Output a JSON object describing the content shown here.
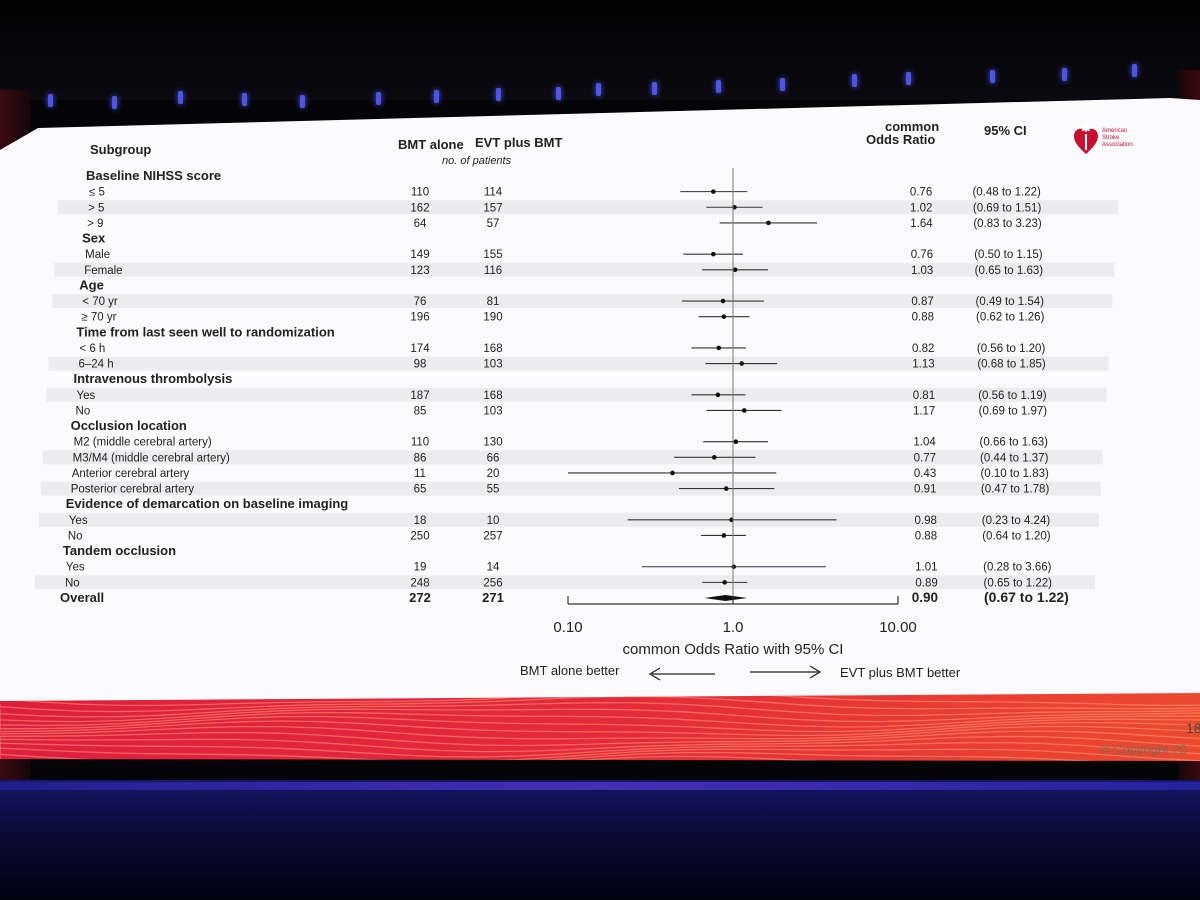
{
  "header": {
    "subgroup": "Subgroup",
    "col_a": "BMT alone",
    "col_b": "EVT plus BMT",
    "patients_note": "no. of patients",
    "or_line1": "common",
    "or_line2": "Odds Ratio",
    "ci": "95% CI"
  },
  "logo": {
    "line1": "American",
    "line2": "Stroke",
    "line3": "Association."
  },
  "chart_data": {
    "type": "forest",
    "xlabel": "common Odds Ratio with 95% CI",
    "xscale": "log",
    "xlim": [
      0.1,
      10
    ],
    "ticks": [
      {
        "value": 0.1,
        "label": "0.10"
      },
      {
        "value": 1,
        "label": "1.0"
      },
      {
        "value": 10,
        "label": "10.00"
      }
    ],
    "left_favors": "BMT alone better",
    "right_favors": "EVT plus BMT better",
    "rows": [
      {
        "kind": "group",
        "label": "Baseline NIHSS score"
      },
      {
        "kind": "sub",
        "label": "≤ 5",
        "a": "110",
        "b": "114",
        "or": 0.76,
        "lo": 0.48,
        "hi": 1.22,
        "or_text": "0.76",
        "ci_text": "(0.48 to 1.22)"
      },
      {
        "kind": "sub",
        "label": "> 5",
        "a": "162",
        "b": "157",
        "or": 1.02,
        "lo": 0.69,
        "hi": 1.51,
        "or_text": "1.02",
        "ci_text": "(0.69 to 1.51)"
      },
      {
        "kind": "sub",
        "label": "> 9",
        "a": "64",
        "b": "57",
        "or": 1.64,
        "lo": 0.83,
        "hi": 3.23,
        "or_text": "1.64",
        "ci_text": "(0.83 to 3.23)"
      },
      {
        "kind": "group",
        "label": "Sex"
      },
      {
        "kind": "sub",
        "label": "Male",
        "a": "149",
        "b": "155",
        "or": 0.76,
        "lo": 0.5,
        "hi": 1.15,
        "or_text": "0.76",
        "ci_text": "(0.50 to 1.15)"
      },
      {
        "kind": "sub",
        "label": "Female",
        "a": "123",
        "b": "116",
        "or": 1.03,
        "lo": 0.65,
        "hi": 1.63,
        "or_text": "1.03",
        "ci_text": "(0.65 to 1.63)"
      },
      {
        "kind": "group",
        "label": "Age"
      },
      {
        "kind": "sub",
        "label": "< 70 yr",
        "a": "76",
        "b": "81",
        "or": 0.87,
        "lo": 0.49,
        "hi": 1.54,
        "or_text": "0.87",
        "ci_text": "(0.49 to 1.54)"
      },
      {
        "kind": "sub",
        "label": "≥ 70 yr",
        "a": "196",
        "b": "190",
        "or": 0.88,
        "lo": 0.62,
        "hi": 1.26,
        "or_text": "0.88",
        "ci_text": "(0.62 to 1.26)"
      },
      {
        "kind": "group",
        "label": "Time from last seen well to randomization"
      },
      {
        "kind": "sub",
        "label": "< 6 h",
        "a": "174",
        "b": "168",
        "or": 0.82,
        "lo": 0.56,
        "hi": 1.2,
        "or_text": "0.82",
        "ci_text": "(0.56 to 1.20)"
      },
      {
        "kind": "sub",
        "label": "6–24 h",
        "a": "98",
        "b": "103",
        "or": 1.13,
        "lo": 0.68,
        "hi": 1.85,
        "or_text": "1.13",
        "ci_text": "(0.68 to 1.85)"
      },
      {
        "kind": "group",
        "label": "Intravenous thrombolysis"
      },
      {
        "kind": "sub",
        "label": "Yes",
        "a": "187",
        "b": "168",
        "or": 0.81,
        "lo": 0.56,
        "hi": 1.19,
        "or_text": "0.81",
        "ci_text": "(0.56 to 1.19)"
      },
      {
        "kind": "sub",
        "label": "No",
        "a": "85",
        "b": "103",
        "or": 1.17,
        "lo": 0.69,
        "hi": 1.97,
        "or_text": "1.17",
        "ci_text": "(0.69 to 1.97)"
      },
      {
        "kind": "group",
        "label": "Occlusion location"
      },
      {
        "kind": "sub",
        "label": "M2 (middle cerebral artery)",
        "a": "110",
        "b": "130",
        "or": 1.04,
        "lo": 0.66,
        "hi": 1.63,
        "or_text": "1.04",
        "ci_text": "(0.66 to 1.63)"
      },
      {
        "kind": "sub",
        "label": "M3/M4 (middle cerebral artery)",
        "a": "86",
        "b": "66",
        "or": 0.77,
        "lo": 0.44,
        "hi": 1.37,
        "or_text": "0.77",
        "ci_text": "(0.44 to 1.37)"
      },
      {
        "kind": "sub",
        "label": "Anterior cerebral artery",
        "a": "11",
        "b": "20",
        "or": 0.43,
        "lo": 0.1,
        "hi": 1.83,
        "or_text": "0.43",
        "ci_text": "(0.10 to 1.83)"
      },
      {
        "kind": "sub",
        "label": "Posterior cerebral artery",
        "a": "65",
        "b": "55",
        "or": 0.91,
        "lo": 0.47,
        "hi": 1.78,
        "or_text": "0.91",
        "ci_text": "(0.47 to 1.78)"
      },
      {
        "kind": "group",
        "label": "Evidence of demarcation on baseline imaging"
      },
      {
        "kind": "sub",
        "label": "Yes",
        "a": "18",
        "b": "10",
        "or": 0.98,
        "lo": 0.23,
        "hi": 4.24,
        "or_text": "0.98",
        "ci_text": "(0.23 to 4.24)"
      },
      {
        "kind": "sub",
        "label": "No",
        "a": "250",
        "b": "257",
        "or": 0.88,
        "lo": 0.64,
        "hi": 1.2,
        "or_text": "0.88",
        "ci_text": "(0.64 to 1.20)"
      },
      {
        "kind": "group",
        "label": "Tandem occlusion"
      },
      {
        "kind": "sub",
        "label": "Yes",
        "a": "19",
        "b": "14",
        "or": 1.01,
        "lo": 0.28,
        "hi": 3.66,
        "or_text": "1.01",
        "ci_text": "(0.28 to 3.66)"
      },
      {
        "kind": "sub",
        "label": "No",
        "a": "248",
        "b": "256",
        "or": 0.89,
        "lo": 0.65,
        "hi": 1.22,
        "or_text": "0.89",
        "ci_text": "(0.65 to 1.22)"
      },
      {
        "kind": "overall",
        "label": "Overall",
        "a": "272",
        "b": "271",
        "or": 0.9,
        "lo": 0.67,
        "hi": 1.22,
        "or_text": "0.90",
        "ci_text": "(0.67 to 1.22)"
      }
    ]
  },
  "slide_number": "18",
  "copyright": "© Copyright 20"
}
